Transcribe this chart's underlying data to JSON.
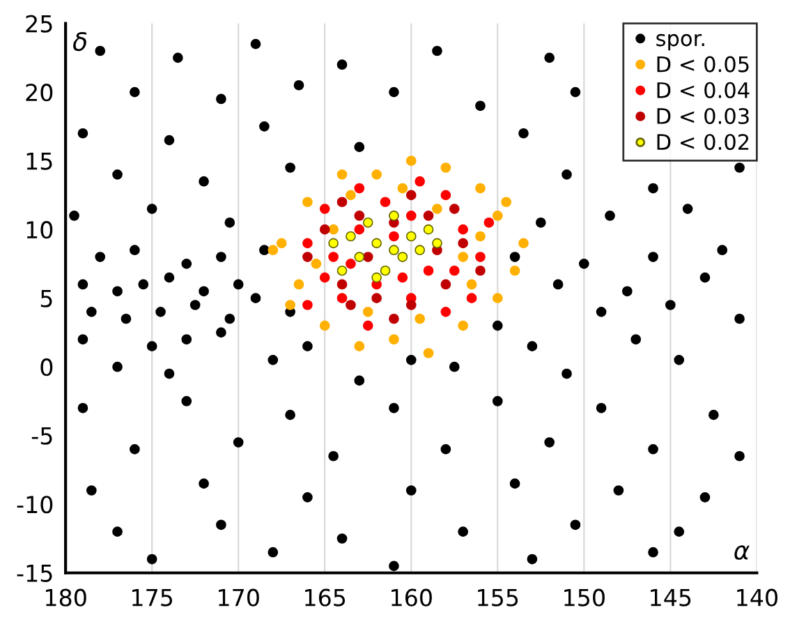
{
  "chart_data": {
    "type": "scatter",
    "xlim": [
      180,
      140
    ],
    "ylim": [
      -15,
      25
    ],
    "xticks": [
      180,
      175,
      170,
      165,
      160,
      155,
      150,
      145,
      140
    ],
    "yticks": [
      -15,
      -10,
      -5,
      0,
      5,
      10,
      15,
      20,
      25
    ],
    "grid": "x",
    "legend": "top right",
    "marker": "circle",
    "annotations": [
      "δ",
      "α"
    ],
    "series": [
      {
        "name": "spor.",
        "color": "#000000",
        "x": [
          178,
          173.5,
          169,
          164,
          158.5,
          152,
          176,
          171,
          166.5,
          161,
          156,
          150.5,
          179,
          174,
          168.5,
          163,
          153.5,
          177,
          172,
          167,
          151,
          146,
          141,
          179.5,
          175,
          170.5,
          152.5,
          148.5,
          144,
          178,
          176,
          173,
          171,
          168.5,
          154,
          150,
          146,
          142,
          179,
          177,
          175.5,
          174,
          172,
          170,
          169,
          151.5,
          147.5,
          143,
          178.5,
          176.5,
          174.5,
          172.5,
          170.5,
          167,
          155,
          149,
          145,
          141,
          179,
          175,
          173,
          171,
          166,
          160,
          153,
          147,
          177,
          174,
          168,
          163,
          157.5,
          151,
          144.5,
          179,
          173,
          167,
          161,
          155,
          149,
          142.5,
          176,
          170,
          164.5,
          158,
          152,
          146,
          141,
          178.5,
          172,
          166,
          160,
          154,
          148,
          143,
          177,
          171,
          164,
          157,
          150.5,
          144.5,
          175,
          168,
          161,
          153,
          146
        ],
        "values": [
          23,
          22.5,
          23.5,
          22,
          23,
          22.5,
          20,
          19.5,
          20.5,
          20,
          19,
          20,
          17,
          16.5,
          17.5,
          16,
          17,
          14,
          13.5,
          14.5,
          14,
          13,
          14.5,
          11,
          11.5,
          10.5,
          10.5,
          11,
          11.5,
          8,
          8.5,
          7.5,
          8,
          8.5,
          8,
          7.5,
          8,
          8.5,
          6,
          5.5,
          6,
          6.5,
          5.5,
          6,
          5,
          6,
          5.5,
          6.5,
          4,
          3.5,
          4,
          4.5,
          3.5,
          4,
          3,
          4,
          4.5,
          3.5,
          2,
          1.5,
          2,
          2.5,
          1.5,
          0.5,
          1.5,
          2,
          0,
          -0.5,
          0.5,
          -1,
          0,
          -0.5,
          0.5,
          -3,
          -2.5,
          -3.5,
          -3,
          -2.5,
          -3,
          -3.5,
          -6,
          -5.5,
          -6.5,
          -6,
          -5.5,
          -6,
          -6.5,
          -9,
          -8.5,
          -9.5,
          -9,
          -8.5,
          -9,
          -9.5,
          -12,
          -11.5,
          -12.5,
          -12,
          -11.5,
          -12,
          -14,
          -13.5,
          -14.5,
          -14,
          -13.5
        ]
      },
      {
        "name": "D < 0.05",
        "color": "#ffb000",
        "x": [
          167.5,
          166,
          165,
          164,
          166.5,
          168,
          163,
          161,
          159,
          157,
          155,
          154,
          153.5,
          155,
          156,
          158,
          160,
          162,
          157,
          164.5,
          162.5,
          159.5,
          165.5,
          156.5,
          154.5,
          167,
          163.5,
          160.5,
          158.5,
          156
        ],
        "values": [
          9,
          12,
          3,
          14,
          6,
          8.5,
          1.5,
          2,
          1,
          3,
          5,
          7,
          9,
          11,
          13,
          14.5,
          15,
          14,
          8,
          10,
          4,
          3.5,
          7.5,
          6,
          12,
          4.5,
          12.5,
          13,
          11.5,
          9.5
        ]
      },
      {
        "name": "D < 0.04",
        "color": "#ff0000",
        "x": [
          166,
          165,
          164,
          163,
          161.5,
          160,
          158,
          157,
          156,
          156.5,
          158,
          160,
          162,
          164.5,
          166,
          159,
          161,
          163,
          157.5,
          165,
          162.5,
          155.5,
          159.5,
          163.5,
          160.5
        ],
        "values": [
          9,
          11.5,
          5,
          13,
          12,
          11,
          12.5,
          10,
          8,
          5,
          4,
          5,
          6,
          8,
          4.5,
          7,
          9.5,
          10,
          7,
          6.5,
          3,
          10.5,
          13.5,
          7.5,
          6.5
        ]
      },
      {
        "name": "D < 0.03",
        "color": "#c00000",
        "x": [
          165,
          163,
          161,
          159,
          157,
          158,
          160,
          162,
          164,
          166,
          162.5,
          158.5,
          156,
          164,
          160,
          161,
          157.5,
          163.5
        ],
        "values": [
          10,
          11,
          10.5,
          11,
          9,
          6,
          4.5,
          5,
          6,
          8,
          8,
          8.5,
          7,
          12,
          12.5,
          3.5,
          11.5,
          4.5
        ]
      },
      {
        "name": "D < 0.02",
        "color": "#ffff00",
        "x": [
          164,
          163,
          162,
          161,
          160,
          159,
          162.5,
          161.5,
          160.5,
          163.5,
          164.5,
          159.5,
          161,
          162,
          158.5
        ],
        "values": [
          7,
          8,
          9,
          8.5,
          9.5,
          10,
          10.5,
          7,
          8,
          9.5,
          9,
          8.5,
          11,
          6.5,
          9
        ]
      }
    ]
  }
}
